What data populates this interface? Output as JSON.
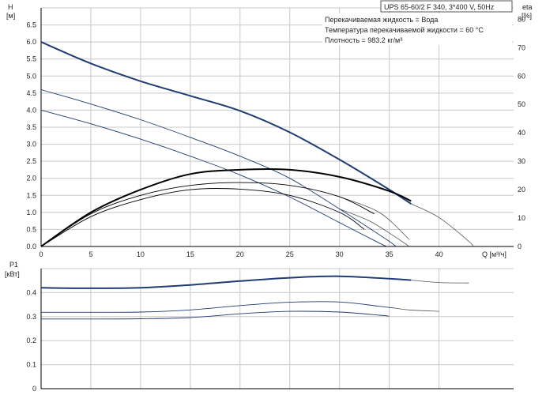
{
  "title": "UPS 65-60/2 F 340, 3*400 V, 50Hz",
  "conditions": [
    "Перекачиваемая жидкость = Вода",
    "Температура перекачиваемой жидкости = 60 °C",
    "Плотность = 983.2 кг/м³"
  ],
  "colors": {
    "curve": "#1f3c73",
    "extension": "#555555",
    "efficiency": "#000000",
    "grid": "#c8c8c8"
  },
  "chart_data": [
    {
      "type": "line",
      "grid": true,
      "x_label": "Q [м³/ч]",
      "xlim": [
        0,
        47.5
      ],
      "x_ticks": [
        0,
        5,
        10,
        15,
        20,
        25,
        30,
        35,
        40
      ],
      "y_left": {
        "label": [
          "H",
          "[м]"
        ],
        "ylim": [
          0,
          7.0
        ],
        "ticks": [
          0,
          0.5,
          1.0,
          1.5,
          2.0,
          2.5,
          3.0,
          3.5,
          4.0,
          4.5,
          5.0,
          5.5,
          6.0,
          6.5
        ]
      },
      "y_right": {
        "label": [
          "eta",
          "[%]"
        ],
        "ylim": [
          0,
          84
        ],
        "ticks": [
          0,
          10,
          20,
          30,
          40,
          50,
          60,
          70,
          80
        ]
      },
      "series": [
        {
          "axis": "left",
          "style": "thick",
          "points": [
            [
              0,
              6.0
            ],
            [
              5,
              5.37
            ],
            [
              10,
              4.85
            ],
            [
              15,
              4.42
            ],
            [
              20,
              3.98
            ],
            [
              25,
              3.35
            ],
            [
              30,
              2.55
            ],
            [
              35,
              1.67
            ],
            [
              37.2,
              1.25
            ]
          ],
          "extension": [
            [
              37.2,
              1.25
            ],
            [
              40,
              0.85
            ],
            [
              43,
              0.15
            ],
            [
              43.4,
              0
            ]
          ]
        },
        {
          "axis": "left",
          "style": "thin",
          "points": [
            [
              0,
              4.6
            ],
            [
              5,
              4.18
            ],
            [
              10,
              3.72
            ],
            [
              15,
              3.2
            ],
            [
              20,
              2.65
            ],
            [
              25,
              2.0
            ],
            [
              30,
              1.1
            ],
            [
              34.5,
              0.25
            ],
            [
              35.7,
              0
            ]
          ],
          "extension": [
            [
              30,
              1.1
            ],
            [
              33,
              0.75
            ],
            [
              35.5,
              0.3
            ],
            [
              37,
              0
            ]
          ]
        },
        {
          "axis": "left",
          "style": "thin",
          "points": [
            [
              0,
              4.0
            ],
            [
              5,
              3.6
            ],
            [
              10,
              3.15
            ],
            [
              15,
              2.65
            ],
            [
              20,
              2.1
            ],
            [
              25,
              1.45
            ],
            [
              30,
              0.7
            ],
            [
              34,
              0.1
            ],
            [
              34.8,
              0
            ]
          ],
          "extension": []
        },
        {
          "axis": "right",
          "style": "thick",
          "points": [
            [
              0,
              0
            ],
            [
              5,
              12
            ],
            [
              10,
              20
            ],
            [
              15,
              25.5
            ],
            [
              20,
              27
            ],
            [
              25,
              27
            ],
            [
              30,
              24.5
            ],
            [
              35,
              19.5
            ],
            [
              37.2,
              16
            ]
          ],
          "extension": []
        },
        {
          "axis": "right",
          "style": "thin",
          "points": [
            [
              0,
              0
            ],
            [
              5,
              11.5
            ],
            [
              10,
              18
            ],
            [
              15,
              21.5
            ],
            [
              20,
              22.5
            ],
            [
              25,
              21.5
            ],
            [
              30,
              17.5
            ],
            [
              33.5,
              11.5
            ]
          ],
          "extension": [
            [
              30,
              17.5
            ],
            [
              34,
              12
            ],
            [
              37,
              2.5
            ]
          ]
        },
        {
          "axis": "right",
          "style": "thin",
          "points": [
            [
              0,
              0
            ],
            [
              5,
              10.5
            ],
            [
              10,
              16.5
            ],
            [
              15,
              20
            ],
            [
              20,
              20.2
            ],
            [
              25,
              18
            ],
            [
              30,
              12
            ],
            [
              32.5,
              6
            ]
          ],
          "extension": []
        }
      ]
    },
    {
      "type": "line",
      "grid": true,
      "xlim": [
        0,
        47.5
      ],
      "y": {
        "label": [
          "P1",
          "[кВт]"
        ],
        "ylim": [
          0,
          0.5
        ],
        "ticks": [
          0,
          0.1,
          0.2,
          0.3,
          0.4
        ]
      },
      "series": [
        {
          "style": "thick",
          "points": [
            [
              0,
              0.42
            ],
            [
              5,
              0.418
            ],
            [
              10,
              0.42
            ],
            [
              15,
              0.432
            ],
            [
              20,
              0.448
            ],
            [
              25,
              0.462
            ],
            [
              30,
              0.468
            ],
            [
              35,
              0.458
            ],
            [
              37.2,
              0.452
            ]
          ],
          "extension": [
            [
              37.2,
              0.452
            ],
            [
              40,
              0.442
            ],
            [
              43,
              0.44
            ]
          ]
        },
        {
          "style": "thin",
          "points": [
            [
              0,
              0.318
            ],
            [
              5,
              0.318
            ],
            [
              10,
              0.319
            ],
            [
              15,
              0.328
            ],
            [
              20,
              0.346
            ],
            [
              25,
              0.36
            ],
            [
              30,
              0.361
            ],
            [
              34,
              0.343
            ],
            [
              35.5,
              0.336
            ]
          ],
          "extension": [
            [
              35.5,
              0.336
            ],
            [
              37,
              0.328
            ],
            [
              40,
              0.322
            ]
          ]
        },
        {
          "style": "thin",
          "points": [
            [
              0,
              0.29
            ],
            [
              5,
              0.29
            ],
            [
              10,
              0.291
            ],
            [
              15,
              0.296
            ],
            [
              20,
              0.312
            ],
            [
              25,
              0.322
            ],
            [
              30,
              0.319
            ],
            [
              34,
              0.306
            ],
            [
              35,
              0.302
            ]
          ],
          "extension": []
        }
      ]
    }
  ]
}
